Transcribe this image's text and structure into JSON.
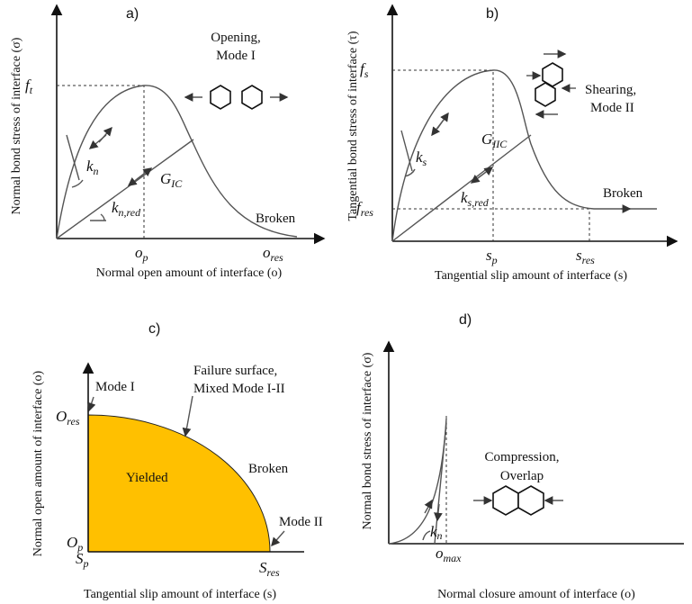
{
  "panel_a": {
    "label": "a)",
    "y_axis_label": "Normal bond stress of interface (σ)",
    "x_axis_label": "Normal open amount of interface (o)",
    "peak_stress": {
      "base": "f",
      "sub": "t"
    },
    "peak_open": {
      "base": "o",
      "sub": "p"
    },
    "residual_open": {
      "base": "o",
      "sub": "res"
    },
    "stiffness": {
      "base": "k",
      "sub": "n"
    },
    "reduced_stiffness": {
      "base": "k",
      "sub": "n,red"
    },
    "fracture_energy": {
      "base": "G",
      "sub": "IC"
    },
    "mode_text": [
      "Opening,",
      "Mode I"
    ],
    "broken": "Broken"
  },
  "panel_b": {
    "label": "b)",
    "y_axis_label": "Tangential bond stress of interface (τ)",
    "x_axis_label": "Tangential slip amount of interface (s)",
    "peak_stress": {
      "base": "f",
      "sub": "s"
    },
    "residual_stress": {
      "base": "f",
      "sub": "res"
    },
    "peak_slip": {
      "base": "s",
      "sub": "p"
    },
    "residual_slip": {
      "base": "s",
      "sub": "res"
    },
    "stiffness": {
      "base": "k",
      "sub": "s"
    },
    "reduced_stiffness": {
      "base": "k",
      "sub": "s,red"
    },
    "fracture_energy": {
      "base": "G",
      "sub": "IIC"
    },
    "mode_text": [
      "Shearing,",
      "Mode II"
    ],
    "broken": "Broken"
  },
  "panel_c": {
    "label": "c)",
    "y_axis_label": "Normal open amount of interface (o)",
    "x_axis_label": "Tangential slip amount of interface (s)",
    "residual_open": {
      "base": "O",
      "sub": "res"
    },
    "peak_open": {
      "base": "O",
      "sub": "p"
    },
    "peak_slip": {
      "base": "S",
      "sub": "p"
    },
    "residual_slip": {
      "base": "S",
      "sub": "res"
    },
    "mode_i": "Mode I",
    "mode_ii": "Mode II",
    "failure_surface": [
      "Failure surface,",
      "Mixed Mode I-II"
    ],
    "broken": "Broken",
    "yielded": "Yielded"
  },
  "panel_d": {
    "label": "d)",
    "y_axis_label": "Normal bond stress of interface (σ)",
    "x_axis_label": "Normal closure amount of interface (o)",
    "stiffness": {
      "base": "k",
      "sub": "n"
    },
    "max_closure": {
      "base": "o",
      "sub": "max"
    },
    "mode_text": [
      "Compression,",
      "Overlap"
    ]
  }
}
